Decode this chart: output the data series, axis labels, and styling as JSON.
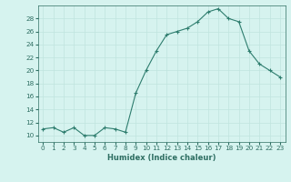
{
  "x": [
    0,
    1,
    2,
    3,
    4,
    5,
    6,
    7,
    8,
    9,
    10,
    11,
    12,
    13,
    14,
    15,
    16,
    17,
    18,
    19,
    20,
    21,
    22,
    23
  ],
  "y": [
    11,
    11.2,
    10.5,
    11.2,
    10.0,
    10.0,
    11.2,
    11.0,
    10.5,
    16.5,
    20.0,
    23.0,
    25.5,
    26.0,
    26.5,
    27.5,
    29.0,
    29.5,
    28.0,
    27.5,
    23.0,
    21.0,
    20.0,
    19.0
  ],
  "line_color": "#2e7d6e",
  "marker": "+",
  "marker_size": 3,
  "marker_lw": 0.8,
  "line_width": 0.8,
  "bg_color": "#d6f3ef",
  "grid_major_color": "#c0e4de",
  "grid_minor_color": "#d0ece8",
  "xlabel": "Humidex (Indice chaleur)",
  "xlim": [
    -0.5,
    23.5
  ],
  "ylim": [
    9,
    30
  ],
  "yticks": [
    10,
    12,
    14,
    16,
    18,
    20,
    22,
    24,
    26,
    28
  ],
  "xticks": [
    0,
    1,
    2,
    3,
    4,
    5,
    6,
    7,
    8,
    9,
    10,
    11,
    12,
    13,
    14,
    15,
    16,
    17,
    18,
    19,
    20,
    21,
    22,
    23
  ],
  "xlabel_color": "#2e6e62",
  "tick_color": "#2e6e62",
  "spine_color": "#2e6e62",
  "tick_fontsize": 5.2,
  "xlabel_fontsize": 6.0
}
